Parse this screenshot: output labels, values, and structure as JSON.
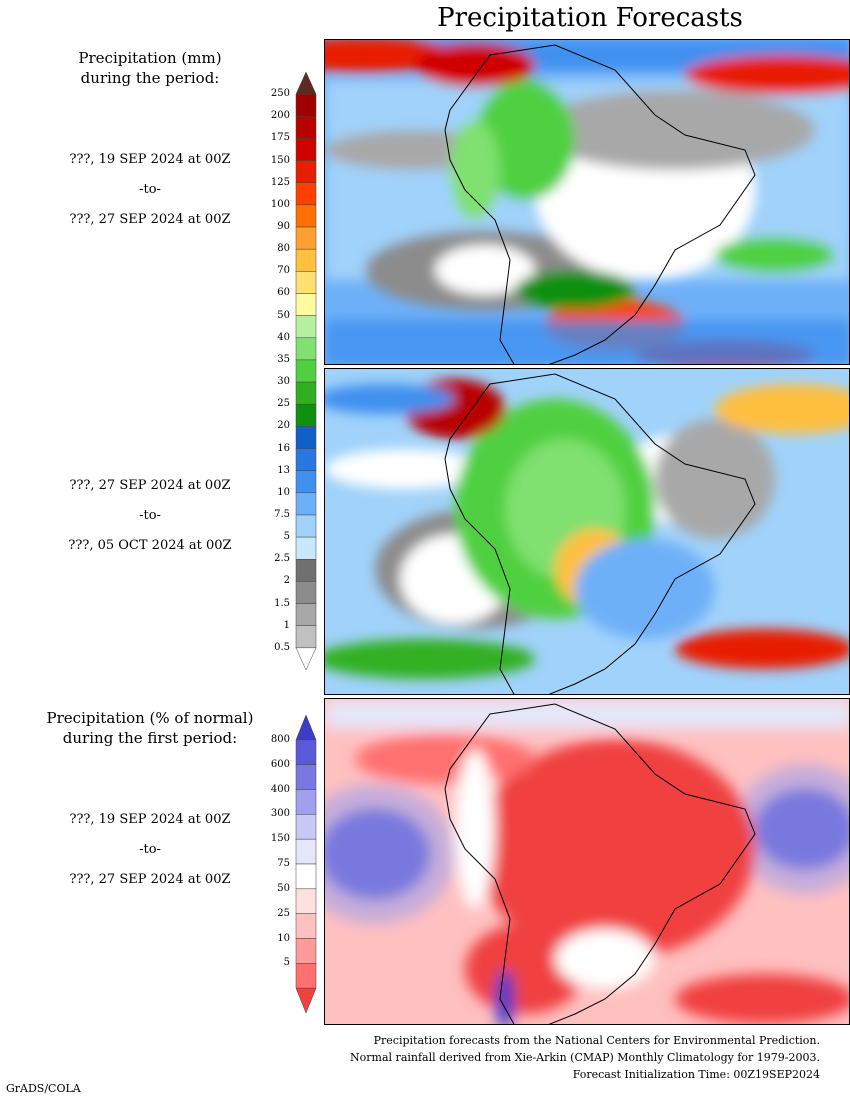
{
  "page_title": "Precipitation Forecasts",
  "left": {
    "mm_header": [
      "Precipitation (mm)",
      "during the period:"
    ],
    "pct_header": [
      "Precipitation (% of normal)",
      "during the first period:"
    ],
    "periods": [
      {
        "from": "???, 19 SEP 2024 at 00Z",
        "sep": "-to-",
        "to": "???, 27 SEP 2024 at 00Z"
      },
      {
        "from": "???, 27 SEP 2024 at 00Z",
        "sep": "-to-",
        "to": "???, 05 OCT 2024 at 00Z"
      },
      {
        "from": "???, 19 SEP 2024 at 00Z",
        "sep": "-to-",
        "to": "???, 27 SEP 2024 at 00Z"
      }
    ]
  },
  "colorbar_mm": {
    "labels": [
      "250",
      "200",
      "175",
      "150",
      "125",
      "100",
      "90",
      "80",
      "70",
      "60",
      "50",
      "40",
      "35",
      "30",
      "25",
      "20",
      "16",
      "13",
      "10",
      "7.5",
      "5",
      "2.5",
      "2",
      "1.5",
      "1",
      "0.5"
    ],
    "colors": [
      "#5c2a1e",
      "#a00000",
      "#b80000",
      "#d00000",
      "#e81e00",
      "#ff4000",
      "#ff7000",
      "#ffa030",
      "#ffc040",
      "#ffe070",
      "#fffaa0",
      "#b4f0a0",
      "#80e070",
      "#50d040",
      "#30b020",
      "#109010",
      "#1060c8",
      "#2878e0",
      "#4090f0",
      "#6eb0f8",
      "#a0d2fa",
      "#c8e8ff",
      "#707070",
      "#8c8c8c",
      "#a8a8a8",
      "#c0c0c0",
      "#ffffff"
    ]
  },
  "colorbar_pct": {
    "labels": [
      "800",
      "600",
      "400",
      "300",
      "150",
      "75",
      "50",
      "25",
      "10",
      "5"
    ],
    "colors": [
      "#3c3cc8",
      "#5a5ad8",
      "#7878e0",
      "#a0a0ec",
      "#c8c8f4",
      "#e6e6fa",
      "#ffffff",
      "#ffe0e0",
      "#ffc0c0",
      "#ff9a9a",
      "#ff7070",
      "#f04040"
    ]
  },
  "footer": {
    "line1": "Precipitation forecasts from the National Centers for Environmental Prediction.",
    "line2": "Normal rainfall derived from Xie-Arkin (CMAP) Monthly Climatology for 1979-2003.",
    "line3": "Forecast Initialization Time: 00Z19SEP2024"
  },
  "credit": "GrADS/COLA"
}
